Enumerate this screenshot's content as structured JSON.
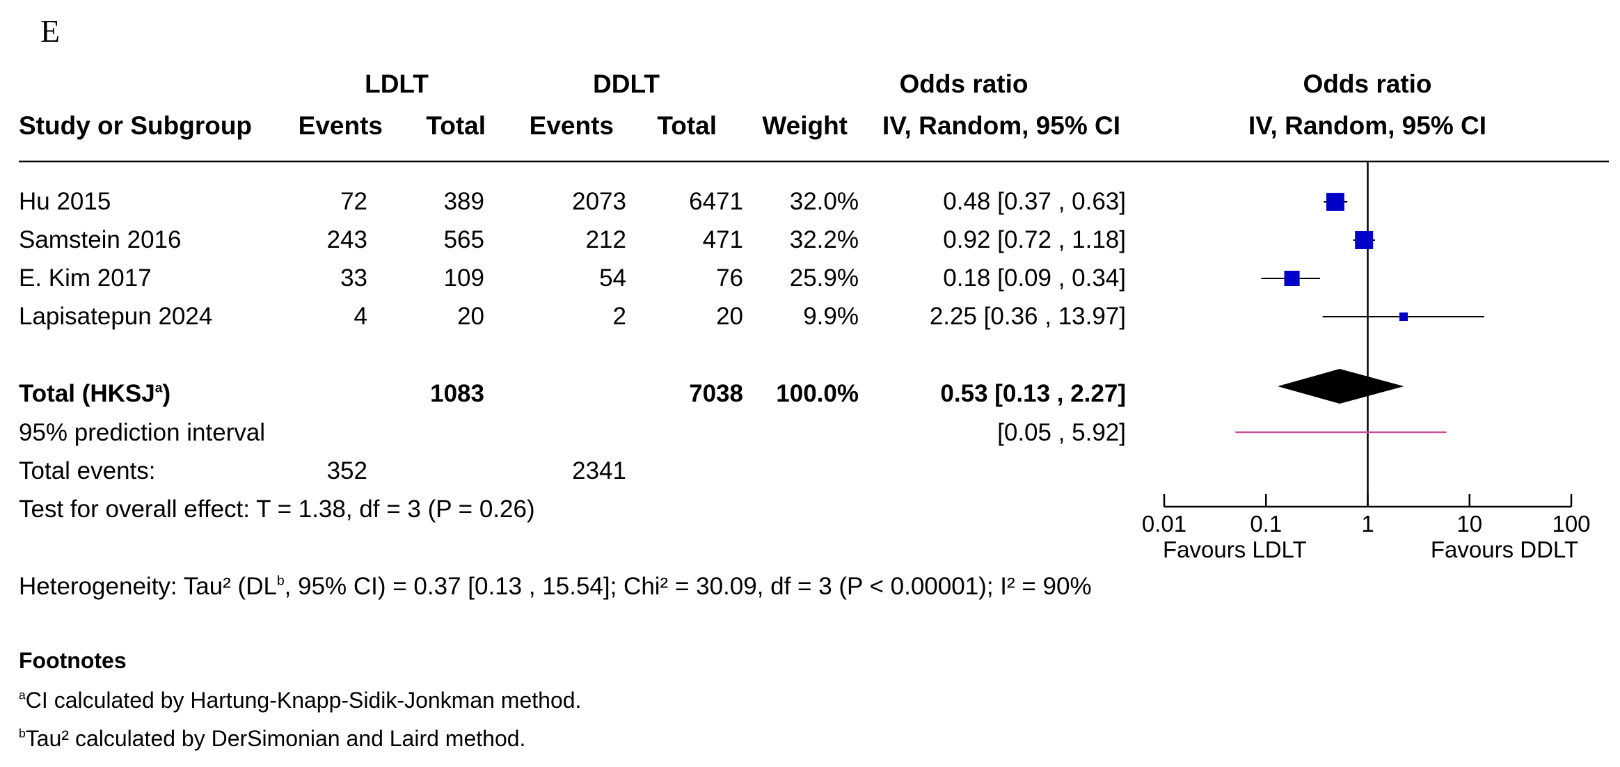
{
  "panel_label": "E",
  "headers": {
    "group1": "LDLT",
    "group2": "DDLT",
    "or_left": "Odds ratio",
    "or_right": "Odds ratio",
    "study": "Study or Subgroup",
    "events1": "Events",
    "total1": "Total",
    "events2": "Events",
    "total2": "Total",
    "weight": "Weight",
    "method_left": "IV, Random, 95% CI",
    "method_right": "IV, Random, 95% CI"
  },
  "studies": [
    {
      "name": "Hu 2015",
      "events1": "72",
      "total1": "389",
      "events2": "2073",
      "total2": "6471",
      "weight": "32.0%",
      "ci_text": "0.48 [0.37 , 0.63]"
    },
    {
      "name": "Samstein 2016",
      "events1": "243",
      "total1": "565",
      "events2": "212",
      "total2": "471",
      "weight": "32.2%",
      "ci_text": "0.92 [0.72 , 1.18]"
    },
    {
      "name": "E. Kim 2017",
      "events1": "33",
      "total1": "109",
      "events2": "54",
      "total2": "76",
      "weight": "25.9%",
      "ci_text": "0.18 [0.09 , 0.34]"
    },
    {
      "name": "Lapisatepun 2024",
      "events1": "4",
      "total1": "20",
      "events2": "2",
      "total2": "20",
      "weight": "9.9%",
      "ci_text": "2.25 [0.36 , 13.97]"
    }
  ],
  "total": {
    "label": "Total (HKSJ",
    "label_sup": "a",
    "label_close": ")",
    "total1": "1083",
    "total2": "7038",
    "weight": "100.0%",
    "ci_text": "0.53 [0.13 , 2.27]"
  },
  "prediction": {
    "label": "95% prediction interval",
    "ci_text": "[0.05 , 5.92]"
  },
  "total_events": {
    "label": "Total events:",
    "events1": "352",
    "events2": "2341"
  },
  "overall_effect": "Test for overall effect: T = 1.38, df = 3 (P = 0.26)",
  "heterogeneity": {
    "pre": "Heterogeneity: Tau² (DL",
    "sup": "b",
    "post": ", 95% CI) = 0.37 [0.13 , 15.54]; Chi² = 30.09, df = 3 (P < 0.00001); I² = 90%"
  },
  "footnotes": {
    "title": "Footnotes",
    "a_mark": "a",
    "a_text": "CI calculated by Hartung-Knapp-Sidik-Jonkman method.",
    "b_mark": "b",
    "b_text": "Tau² calculated by DerSimonian and Laird method."
  },
  "chart_data": {
    "type": "scatter",
    "scale": "log",
    "xlim": [
      0.01,
      100
    ],
    "tick_labels": [
      "0.01",
      "0.1",
      "1",
      "10",
      "100"
    ],
    "tick_values": [
      0.01,
      0.1,
      1,
      10,
      100
    ],
    "favours_left": "Favours LDLT",
    "favours_right": "Favours DDLT",
    "studies": [
      {
        "or": 0.48,
        "lo": 0.37,
        "hi": 0.63,
        "weight": 32.0
      },
      {
        "or": 0.92,
        "lo": 0.72,
        "hi": 1.18,
        "weight": 32.2
      },
      {
        "or": 0.18,
        "lo": 0.09,
        "hi": 0.34,
        "weight": 25.9
      },
      {
        "or": 2.25,
        "lo": 0.36,
        "hi": 13.97,
        "weight": 9.9
      }
    ],
    "pooled": {
      "or": 0.53,
      "lo": 0.13,
      "hi": 2.27
    },
    "prediction_interval": {
      "lo": 0.05,
      "hi": 5.92
    },
    "colors": {
      "study_marker": "#0000c8",
      "pooled_diamond": "#000000",
      "prediction_line": "#c8509a",
      "axis": "#000000"
    }
  }
}
